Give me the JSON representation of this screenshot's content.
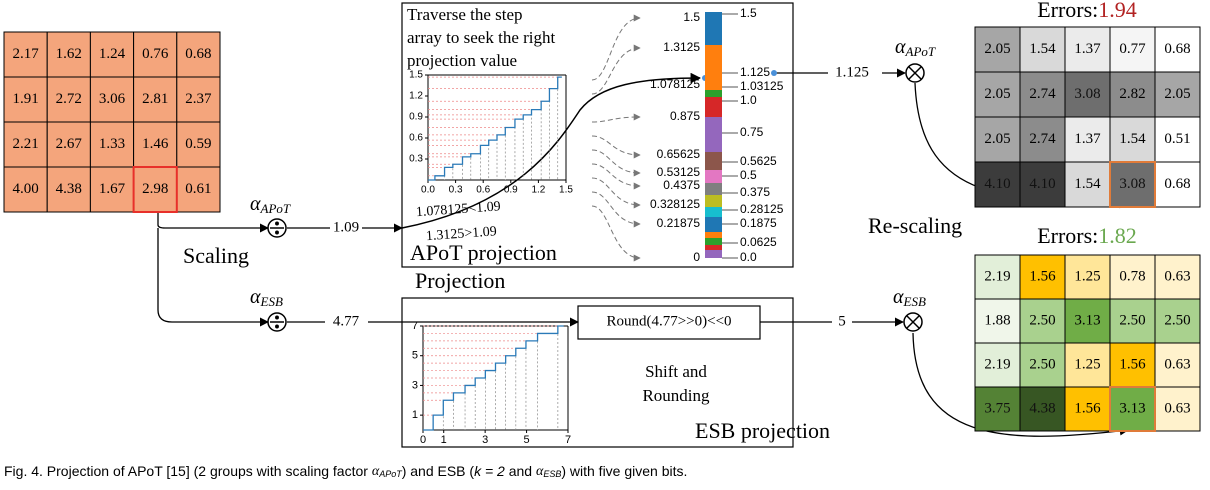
{
  "input_matrix": {
    "cells": [
      [
        "2.17",
        "1.62",
        "1.24",
        "0.76",
        "0.68"
      ],
      [
        "1.91",
        "2.72",
        "3.06",
        "2.81",
        "2.37"
      ],
      [
        "2.21",
        "2.67",
        "1.33",
        "1.46",
        "0.59"
      ],
      [
        "4.00",
        "4.38",
        "1.67",
        "2.98",
        "0.61"
      ]
    ]
  },
  "scaling": {
    "label": "Scaling",
    "alpha_apot": {
      "symbol": "α",
      "subscript": "APoT"
    },
    "alpha_esb": {
      "symbol": "α",
      "subscript": "ESB"
    },
    "apot_value": "1.09",
    "esb_value": "4.77"
  },
  "apot_panel": {
    "note_lines": [
      "Traverse the step",
      "array to seek the right",
      "projection value"
    ],
    "compare_lines": [
      "1.078125<1.09",
      "1.3125>1.09"
    ],
    "title": "APoT projection",
    "inset_xticks": [
      "0.0",
      "0.3",
      "0.6",
      "0.9",
      "1.2",
      "1.5"
    ],
    "inset_yticks": [
      "0.3",
      "0.6",
      "0.9",
      "1.2",
      "1.5"
    ],
    "left_levels": [
      "1.5",
      "1.3125",
      "1.078125",
      "0.875",
      "0.65625",
      "0.53125",
      "0.4375",
      "0.328125",
      "0.21875",
      "0"
    ],
    "right_levels": [
      "1.5",
      "1.125",
      "1.03125",
      "1.0",
      "0.75",
      "0.5625",
      "0.5",
      "0.375",
      "0.28125",
      "0.1875",
      "0.0625",
      "0.0"
    ],
    "result": "1.125"
  },
  "projection_label": "Projection",
  "esb_panel": {
    "round_expr": "Round(4.77>>0)<<0",
    "result": "5",
    "note_lines": [
      "Shift and",
      "Rounding"
    ],
    "title": "ESB projection",
    "inset_xticks": [
      "0",
      "1",
      "3",
      "5",
      "7"
    ],
    "inset_yticks": [
      "1",
      "3",
      "5",
      "7"
    ]
  },
  "rescaling_label": "Re-scaling",
  "apot_output": {
    "errors_label": "Errors:",
    "errors_value": "1.94",
    "cells": [
      [
        "2.05",
        "1.54",
        "1.37",
        "0.77",
        "0.68"
      ],
      [
        "2.05",
        "2.74",
        "3.08",
        "2.82",
        "2.05"
      ],
      [
        "2.05",
        "2.74",
        "1.37",
        "1.54",
        "0.51"
      ],
      [
        "4.10",
        "4.10",
        "1.54",
        "3.08",
        "0.68"
      ]
    ]
  },
  "esb_output": {
    "errors_label": "Errors:",
    "errors_value": "1.82",
    "cells": [
      [
        "2.19",
        "1.56",
        "1.25",
        "0.78",
        "0.63"
      ],
      [
        "1.88",
        "2.50",
        "3.13",
        "2.50",
        "2.50"
      ],
      [
        "2.19",
        "2.50",
        "1.25",
        "1.56",
        "0.63"
      ],
      [
        "3.75",
        "4.38",
        "1.56",
        "3.13",
        "0.63"
      ]
    ]
  },
  "caption": {
    "prefix": "Fig. 4. Projection of APoT [15] (2 groups with scaling factor ",
    "alpha": "α",
    "apot_sub": "APoT",
    "middle": ") and ESB (",
    "k_expr": "k = 2",
    "and": " and ",
    "esb_sub": "ESB",
    "suffix": ") with five given bits."
  }
}
